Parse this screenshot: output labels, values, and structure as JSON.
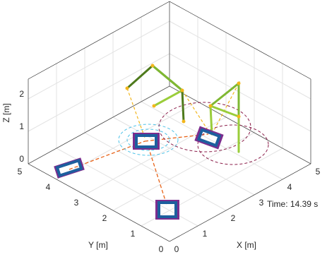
{
  "axes": {
    "x": {
      "label": "X [m]",
      "ticks": [
        0,
        1,
        2,
        3,
        4,
        5
      ]
    },
    "y": {
      "label": "Y [m]",
      "ticks": [
        0,
        1,
        2,
        3,
        4,
        5
      ]
    },
    "z": {
      "label": "Z [m]",
      "ticks": [
        0,
        1,
        2
      ]
    }
  },
  "annotation": "Time: 14.39 s"
}
